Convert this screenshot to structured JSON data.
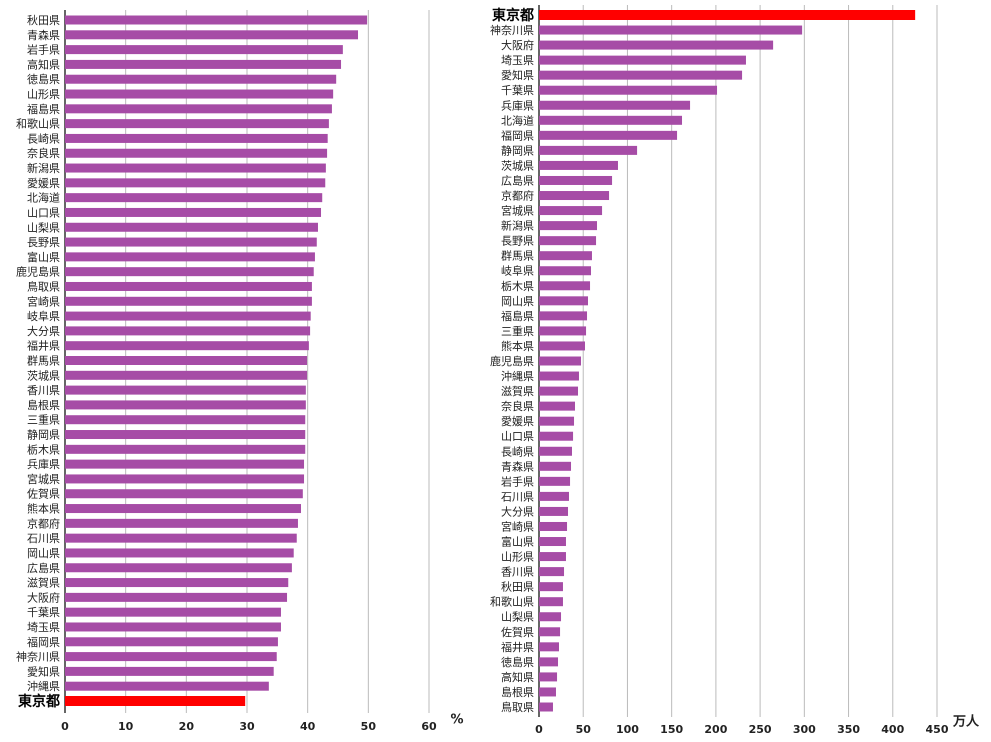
{
  "chart_data": [
    {
      "type": "barh",
      "x_label": "%",
      "color": "#a64ca6",
      "categories": [
        "秋田県",
        "青森県",
        "岩手県",
        "高知県",
        "徳島県",
        "山形県",
        "福島県",
        "和歌山県",
        "長崎県",
        "奈良県",
        "新潟県",
        "愛媛県",
        "北海道",
        "山口県",
        "山梨県",
        "長野県",
        "富山県",
        "鹿児島県",
        "鳥取県",
        "宮崎県",
        "岐阜県",
        "大分県",
        "福井県",
        "群馬県",
        "茨城県",
        "香川県",
        "島根県",
        "三重県",
        "静岡県",
        "栃木県",
        "兵庫県",
        "宮城県",
        "佐賀県",
        "熊本県",
        "京都府",
        "石川県",
        "岡山県",
        "広島県",
        "滋賀県",
        "大阪府",
        "千葉県",
        "埼玉県",
        "福岡県",
        "神奈川県",
        "愛知県",
        "沖縄県",
        "東京都"
      ],
      "values": [
        49.8,
        48.3,
        45.8,
        45.5,
        44.7,
        44.2,
        44.0,
        43.5,
        43.3,
        43.2,
        43.0,
        42.9,
        42.4,
        42.2,
        41.7,
        41.5,
        41.2,
        41.0,
        40.7,
        40.7,
        40.5,
        40.4,
        40.2,
        39.9,
        39.9,
        39.7,
        39.7,
        39.6,
        39.6,
        39.6,
        39.4,
        39.4,
        39.2,
        38.9,
        38.4,
        38.2,
        37.7,
        37.4,
        36.8,
        36.6,
        35.6,
        35.6,
        35.1,
        34.9,
        34.4,
        33.6,
        29.7
      ],
      "colors": [
        "#a64ca6",
        "#a64ca6",
        "#a64ca6",
        "#a64ca6",
        "#a64ca6",
        "#a64ca6",
        "#a64ca6",
        "#a64ca6",
        "#a64ca6",
        "#a64ca6",
        "#a64ca6",
        "#a64ca6",
        "#a64ca6",
        "#a64ca6",
        "#a64ca6",
        "#a64ca6",
        "#a64ca6",
        "#a64ca6",
        "#a64ca6",
        "#a64ca6",
        "#a64ca6",
        "#a64ca6",
        "#a64ca6",
        "#a64ca6",
        "#a64ca6",
        "#a64ca6",
        "#a64ca6",
        "#a64ca6",
        "#a64ca6",
        "#a64ca6",
        "#a64ca6",
        "#a64ca6",
        "#a64ca6",
        "#a64ca6",
        "#a64ca6",
        "#a64ca6",
        "#a64ca6",
        "#a64ca6",
        "#a64ca6",
        "#a64ca6",
        "#a64ca6",
        "#a64ca6",
        "#a64ca6",
        "#a64ca6",
        "#a64ca6",
        "#a64ca6",
        "#ff0000"
      ],
      "xlim": [
        0,
        60
      ],
      "xticks": [
        0,
        10,
        20,
        30,
        40,
        50,
        60
      ],
      "grid": true
    },
    {
      "type": "barh",
      "x_label": "万人",
      "color": "#a64ca6",
      "categories": [
        "東京都",
        "神奈川県",
        "大阪府",
        "埼玉県",
        "愛知県",
        "千葉県",
        "兵庫県",
        "北海道",
        "福岡県",
        "静岡県",
        "茨城県",
        "広島県",
        "京都府",
        "宮城県",
        "新潟県",
        "長野県",
        "群馬県",
        "岐阜県",
        "栃木県",
        "岡山県",
        "福島県",
        "三重県",
        "熊本県",
        "鹿児島県",
        "沖縄県",
        "滋賀県",
        "奈良県",
        "愛媛県",
        "山口県",
        "長崎県",
        "青森県",
        "岩手県",
        "石川県",
        "大分県",
        "宮崎県",
        "富山県",
        "山形県",
        "香川県",
        "秋田県",
        "和歌山県",
        "山梨県",
        "佐賀県",
        "福井県",
        "徳島県",
        "高知県",
        "島根県",
        "鳥取県"
      ],
      "values": [
        425.3,
        297.5,
        264.7,
        234,
        229.6,
        201.3,
        170.8,
        161.7,
        156.1,
        110.9,
        89.3,
        82.6,
        79.2,
        71.3,
        65.6,
        64.5,
        59.9,
        58.8,
        57.7,
        55.4,
        54.3,
        53.2,
        52,
        47.5,
        45.2,
        44.1,
        40.7,
        39.6,
        38.5,
        37.3,
        36.2,
        35.1,
        33.9,
        32.8,
        31.7,
        30.5,
        30.5,
        28.3,
        27.1,
        27.1,
        24.9,
        23.8,
        22.6,
        21.5,
        20.4,
        19.2,
        15.8
      ],
      "colors": [
        "#ff0000",
        "#a64ca6",
        "#a64ca6",
        "#a64ca6",
        "#a64ca6",
        "#a64ca6",
        "#a64ca6",
        "#a64ca6",
        "#a64ca6",
        "#a64ca6",
        "#a64ca6",
        "#a64ca6",
        "#a64ca6",
        "#a64ca6",
        "#a64ca6",
        "#a64ca6",
        "#a64ca6",
        "#a64ca6",
        "#a64ca6",
        "#a64ca6",
        "#a64ca6",
        "#a64ca6",
        "#a64ca6",
        "#a64ca6",
        "#a64ca6",
        "#a64ca6",
        "#a64ca6",
        "#a64ca6",
        "#a64ca6",
        "#a64ca6",
        "#a64ca6",
        "#a64ca6",
        "#a64ca6",
        "#a64ca6",
        "#a64ca6",
        "#a64ca6",
        "#a64ca6",
        "#a64ca6",
        "#a64ca6",
        "#a64ca6",
        "#a64ca6",
        "#a64ca6",
        "#a64ca6",
        "#a64ca6",
        "#a64ca6",
        "#a64ca6",
        "#a64ca6"
      ],
      "xlim": [
        0,
        450
      ],
      "xticks": [
        0,
        50,
        100,
        150,
        200,
        250,
        300,
        350,
        400,
        450
      ],
      "grid": true
    }
  ]
}
